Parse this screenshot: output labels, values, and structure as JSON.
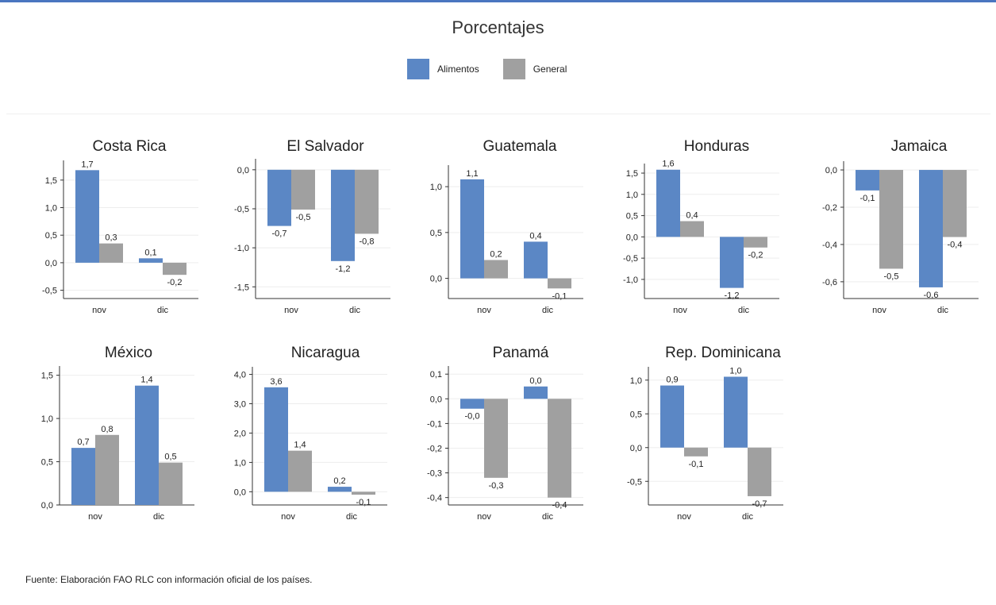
{
  "title": "Porcentajes",
  "legend": [
    {
      "label": "Alimentos",
      "color": "#5b87c5"
    },
    {
      "label": "General",
      "color": "#a0a0a0"
    }
  ],
  "source": "Fuente: Elaboración FAO RLC con información oficial de los países.",
  "chart_data": [
    {
      "type": "bar",
      "title": "Costa Rica",
      "categories": [
        "nov",
        "dic"
      ],
      "series": [
        {
          "name": "Alimentos",
          "values": [
            1.68,
            0.08
          ],
          "labels": [
            "1,7",
            "0,1"
          ]
        },
        {
          "name": "General",
          "values": [
            0.35,
            -0.22
          ],
          "labels": [
            "0,3",
            "-0,2"
          ]
        }
      ],
      "ylim": [
        -0.65,
        1.8
      ],
      "yticks": [
        -0.5,
        0,
        0.5,
        1,
        1.5
      ],
      "ytick_labels": [
        "-0,5",
        "0,0",
        "0,5",
        "1,0",
        "1,5"
      ],
      "grid": true
    },
    {
      "type": "bar",
      "title": "El Salvador",
      "categories": [
        "nov",
        "dic"
      ],
      "series": [
        {
          "name": "Alimentos",
          "values": [
            -0.72,
            -1.17
          ],
          "labels": [
            "-0,7",
            "-1,2"
          ]
        },
        {
          "name": "General",
          "values": [
            -0.51,
            -0.82
          ],
          "labels": [
            "-0,5",
            "-0,8"
          ]
        }
      ],
      "ylim": [
        -1.65,
        0.1
      ],
      "yticks": [
        -1.5,
        -1,
        -0.5,
        0
      ],
      "ytick_labels": [
        "-1,5",
        "-1,0",
        "-0,5",
        "0,0"
      ],
      "grid": true
    },
    {
      "type": "bar",
      "title": "Guatemala",
      "categories": [
        "nov",
        "dic"
      ],
      "series": [
        {
          "name": "Alimentos",
          "values": [
            1.08,
            0.4
          ],
          "labels": [
            "1,1",
            "0,4"
          ]
        },
        {
          "name": "General",
          "values": [
            0.2,
            -0.11
          ],
          "labels": [
            "0,2",
            "-0,1"
          ]
        }
      ],
      "ylim": [
        -0.22,
        1.2
      ],
      "yticks": [
        0,
        0.5,
        1
      ],
      "ytick_labels": [
        "0,0",
        "0,5",
        "1,0"
      ],
      "grid": true
    },
    {
      "type": "bar",
      "title": "Honduras",
      "categories": [
        "nov",
        "dic"
      ],
      "series": [
        {
          "name": "Alimentos",
          "values": [
            1.58,
            -1.2
          ],
          "labels": [
            "1,6",
            "-1,2"
          ]
        },
        {
          "name": "General",
          "values": [
            0.37,
            -0.25
          ],
          "labels": [
            "0,4",
            "-0,2"
          ]
        }
      ],
      "ylim": [
        -1.45,
        1.65
      ],
      "yticks": [
        -1,
        -0.5,
        0,
        0.5,
        1,
        1.5
      ],
      "ytick_labels": [
        "-1,0",
        "-0,5",
        "0,0",
        "0,5",
        "1,0",
        "1,5"
      ],
      "grid": true
    },
    {
      "type": "bar",
      "title": "Jamaica",
      "categories": [
        "nov",
        "dic"
      ],
      "series": [
        {
          "name": "Alimentos",
          "values": [
            -0.11,
            -0.63
          ],
          "labels": [
            "-0,1",
            "-0,6"
          ]
        },
        {
          "name": "General",
          "values": [
            -0.53,
            -0.36
          ],
          "labels": [
            "-0,5",
            "-0,4"
          ]
        }
      ],
      "ylim": [
        -0.69,
        0.03
      ],
      "yticks": [
        -0.6,
        -0.4,
        -0.2,
        0
      ],
      "ytick_labels": [
        "-0,6",
        "-0,4",
        "-0,2",
        "0,0"
      ],
      "grid": true
    },
    {
      "type": "bar",
      "title": "México",
      "categories": [
        "nov",
        "dic"
      ],
      "series": [
        {
          "name": "Alimentos",
          "values": [
            0.66,
            1.38
          ],
          "labels": [
            "0,7",
            "1,4"
          ]
        },
        {
          "name": "General",
          "values": [
            0.81,
            0.49
          ],
          "labels": [
            "0,8",
            "0,5"
          ]
        }
      ],
      "ylim": [
        0,
        1.57
      ],
      "yticks": [
        0,
        0.5,
        1,
        1.5
      ],
      "ytick_labels": [
        "0,0",
        "0,5",
        "1,0",
        "1,5"
      ],
      "grid": true
    },
    {
      "type": "bar",
      "title": "Nicaragua",
      "categories": [
        "nov",
        "dic"
      ],
      "series": [
        {
          "name": "Alimentos",
          "values": [
            3.56,
            0.17
          ],
          "labels": [
            "3,6",
            "0,2"
          ]
        },
        {
          "name": "General",
          "values": [
            1.4,
            -0.1
          ],
          "labels": [
            "1,4",
            "-0,1"
          ]
        }
      ],
      "ylim": [
        -0.45,
        4.15
      ],
      "yticks": [
        0,
        1,
        2,
        3,
        4
      ],
      "ytick_labels": [
        "0,0",
        "1,0",
        "2,0",
        "3,0",
        "4,0"
      ],
      "grid": true
    },
    {
      "type": "bar",
      "title": "Panamá",
      "categories": [
        "nov",
        "dic"
      ],
      "series": [
        {
          "name": "Alimentos",
          "values": [
            -0.04,
            0.05
          ],
          "labels": [
            "-0,0",
            "0,0"
          ]
        },
        {
          "name": "General",
          "values": [
            -0.32,
            -0.4
          ],
          "labels": [
            "-0,3",
            "-0,4"
          ]
        }
      ],
      "ylim": [
        -0.43,
        0.12
      ],
      "yticks": [
        -0.4,
        -0.3,
        -0.2,
        -0.1,
        0,
        0.1
      ],
      "ytick_labels": [
        "-0,4",
        "-0,3",
        "-0,2",
        "-0,1",
        "0,0",
        "0,1"
      ],
      "grid": true
    },
    {
      "type": "bar",
      "title": "Rep. Dominicana",
      "categories": [
        "nov",
        "dic"
      ],
      "series": [
        {
          "name": "Alimentos",
          "values": [
            0.92,
            1.05
          ],
          "labels": [
            "0,9",
            "1,0"
          ]
        },
        {
          "name": "General",
          "values": [
            -0.13,
            -0.72
          ],
          "labels": [
            "-0,1",
            "-0,7"
          ]
        }
      ],
      "ylim": [
        -0.85,
        1.15
      ],
      "yticks": [
        -0.5,
        0,
        0.5,
        1
      ],
      "ytick_labels": [
        "-0,5",
        "0,0",
        "0,5",
        "1,0"
      ],
      "grid": true
    }
  ]
}
